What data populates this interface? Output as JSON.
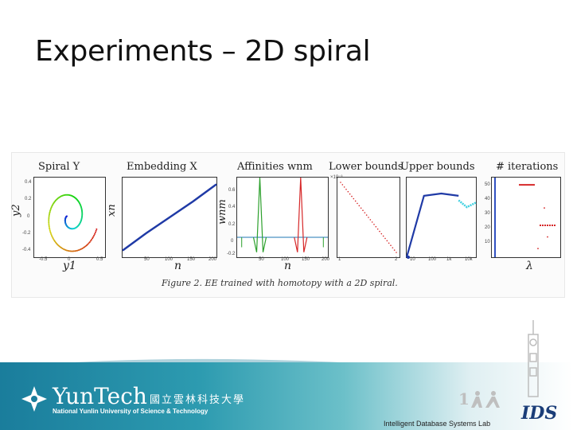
{
  "slide": {
    "title": "Experiments – 2D spiral"
  },
  "figure": {
    "caption": "Figure 2. EE trained with homotopy with a 2D spiral.",
    "panels": {
      "spiral": {
        "title": "Spiral Y",
        "xlabel": "y1",
        "ylabel": "y2",
        "xticks": [
          "-0.5",
          "0",
          "0.5"
        ],
        "yticks": [
          "0.4",
          "0.2",
          "0",
          "-0.2",
          "-0.4"
        ]
      },
      "embedding": {
        "title": "Embedding X",
        "xlabel": "n",
        "ylabel": "xn",
        "xticks": [
          "50",
          "100",
          "150",
          "200"
        ],
        "yticks": [
          "30",
          "25",
          "20",
          "15",
          "10",
          "5",
          "0",
          "-5",
          "-10",
          "-15",
          "-20",
          "-25"
        ]
      },
      "affinities": {
        "title": "Affinities wnm",
        "xlabel": "n",
        "ylabel": "wnm",
        "xticks": [
          "50",
          "100",
          "150",
          "200"
        ],
        "yticks": [
          "0.6",
          "0.4",
          "0.2",
          "0",
          "-0.2"
        ]
      },
      "lower": {
        "title": "Lower bounds",
        "xticks": [
          "1",
          "2"
        ],
        "yticks": [
          "4",
          "3",
          "2",
          "1",
          "0"
        ],
        "exp": "×10⁻³"
      },
      "upper": {
        "title": "Upper bounds",
        "xticks": [
          "10",
          "100",
          "1k",
          "10k"
        ],
        "yticks": [
          "35",
          "30",
          "25",
          "20",
          "15",
          "10",
          "5",
          "0"
        ]
      },
      "iterations": {
        "title": "# iterations",
        "xlabel": "λ",
        "yticks": [
          "50",
          "40",
          "30",
          "20",
          "10"
        ]
      }
    }
  },
  "chart_data": [
    {
      "type": "scatter",
      "title": "Spiral Y",
      "xlabel": "y1",
      "ylabel": "y2",
      "xlim": [
        -0.6,
        0.6
      ],
      "ylim": [
        -0.5,
        0.5
      ],
      "series": [
        {
          "shape": "spiral",
          "points": 200
        }
      ]
    },
    {
      "type": "line",
      "title": "Embedding X",
      "xlabel": "n",
      "ylabel": "xn",
      "xlim": [
        0,
        200
      ],
      "ylim": [
        -30,
        30
      ],
      "x": [
        0,
        50,
        100,
        150,
        200
      ],
      "y": [
        -25,
        -12,
        0,
        12,
        25
      ]
    },
    {
      "type": "line",
      "title": "Affinities wnm",
      "xlabel": "n",
      "ylabel": "wnm",
      "xlim": [
        0,
        200
      ],
      "ylim": [
        -0.2,
        0.6
      ],
      "series": [
        {
          "color": "#2ca02c",
          "peak_x": 50,
          "peak_y": 0.6
        },
        {
          "color": "#d62728",
          "peak_x": 140,
          "peak_y": 0.6
        },
        {
          "color": "#1f77b4",
          "baseline": 0
        }
      ]
    },
    {
      "type": "scatter",
      "title": "Lower bounds",
      "xlim": [
        1,
        2
      ],
      "ylim": [
        0,
        4
      ],
      "x": [
        1,
        1.5,
        2
      ],
      "y": [
        4,
        2,
        0
      ]
    },
    {
      "type": "line",
      "title": "Upper bounds",
      "xlim": [
        1,
        10000
      ],
      "ylim": [
        0,
        35
      ],
      "series": [
        {
          "color": "#1f3aa6",
          "x": [
            1,
            10,
            100,
            1000
          ],
          "y": [
            0,
            27,
            28,
            27
          ]
        },
        {
          "color": "#40d0e0",
          "x": [
            1000,
            3000,
            10000
          ],
          "y": [
            25,
            22,
            24
          ]
        }
      ]
    },
    {
      "type": "scatter",
      "title": "# iterations",
      "xlabel": "λ",
      "ylim": [
        0,
        55
      ],
      "series": [
        {
          "color": "#d62728",
          "level": 50
        },
        {
          "color": "#d62728",
          "level": 22
        }
      ]
    }
  ],
  "footer": {
    "logo_word": "YunTech",
    "logo_cn": "國立雲林科技大學",
    "logo_en": "National Yunlin University of Science & Technology",
    "lab_text": "Intelligent Database Systems Lab",
    "lab_logo": "IDS"
  }
}
